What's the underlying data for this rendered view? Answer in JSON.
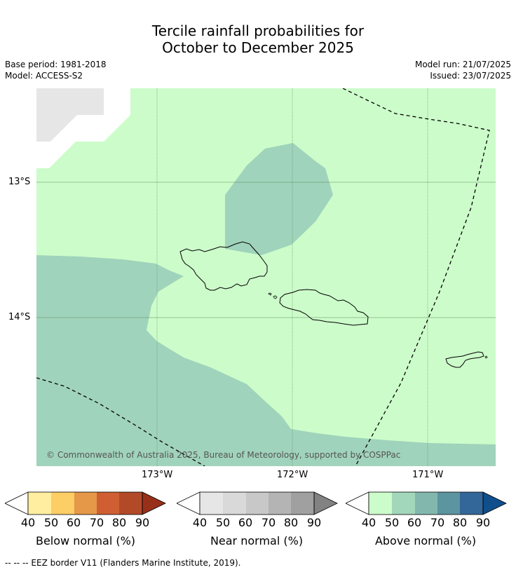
{
  "title": {
    "line1": "Tercile rainfall probabilities for",
    "line2": "October to December 2025"
  },
  "meta": {
    "base_period": "Base period: 1981-2018",
    "model": "Model: ACCESS-S2",
    "model_run": "Model run: 21/07/2025",
    "issued": "Issued: 23/07/2025"
  },
  "map": {
    "lat_labels": [
      "13°S",
      "14°S"
    ],
    "lon_labels": [
      "173°W",
      "172°W",
      "171°W"
    ],
    "copyright": "© Commonwealth of Australia 2025, Bureau of Meteorology, supported by COSPPac",
    "colors": {
      "background_above_40": "#ccfcca",
      "above_50": "#a0d3bb",
      "no_data": "#e6e6e6",
      "eez_border": "#000000",
      "coastline": "#000000"
    }
  },
  "colorbars": [
    {
      "label": "Below normal (%)",
      "ticks": [
        "40",
        "50",
        "60",
        "70",
        "80",
        "90"
      ],
      "colors": [
        "#ffffff",
        "#ffeea0",
        "#fdcd66",
        "#e59848",
        "#cf5f32",
        "#b24a28",
        "#983019"
      ]
    },
    {
      "label": "Near normal (%)",
      "ticks": [
        "40",
        "50",
        "60",
        "70",
        "80",
        "90"
      ],
      "colors": [
        "#ffffff",
        "#e6e6e6",
        "#d9d9d9",
        "#c8c8c8",
        "#b4b4b4",
        "#a0a0a0",
        "#828282"
      ]
    },
    {
      "label": "Above normal (%)",
      "ticks": [
        "40",
        "50",
        "60",
        "70",
        "80",
        "90"
      ],
      "colors": [
        "#ffffff",
        "#ccfcca",
        "#a3d7bc",
        "#82b7ad",
        "#5c94a0",
        "#33679a",
        "#114f8c"
      ]
    }
  ],
  "footer": "--  --  -- EEZ border V11 (Flanders Marine Institute, 2019)."
}
